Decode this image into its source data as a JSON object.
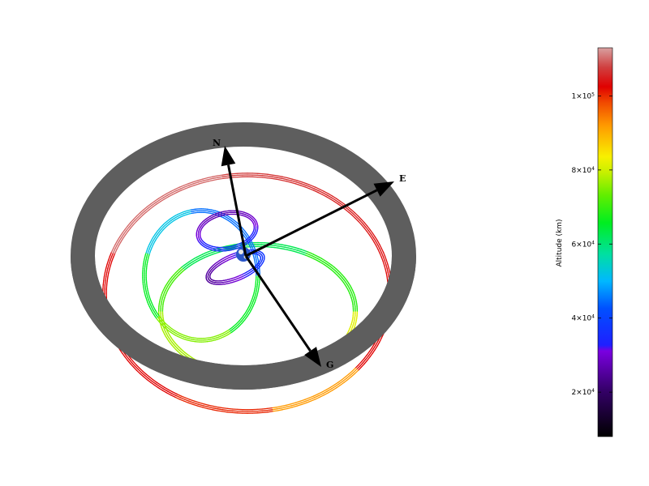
{
  "chart_data": {
    "type": "3d-orbit-trajectory",
    "axes_labels": {
      "north": "N",
      "east": "E",
      "g": "G"
    },
    "colorbar": {
      "title": "Altitude (km)",
      "range": [
        8000,
        113000
      ],
      "ticks": [
        {
          "value": 20000,
          "label_mantissa": "2×10",
          "label_exp": "4"
        },
        {
          "value": 40000,
          "label_mantissa": "4×10",
          "label_exp": "4"
        },
        {
          "value": 60000,
          "label_mantissa": "6×10",
          "label_exp": "4"
        },
        {
          "value": 80000,
          "label_mantissa": "8×10",
          "label_exp": "4"
        },
        {
          "value": 100000,
          "label_mantissa": "1×10",
          "label_exp": "5"
        }
      ]
    },
    "colors": {
      "ring": "#5e5e5e",
      "arrow": "#000000",
      "earth": "#2a55c8"
    }
  }
}
